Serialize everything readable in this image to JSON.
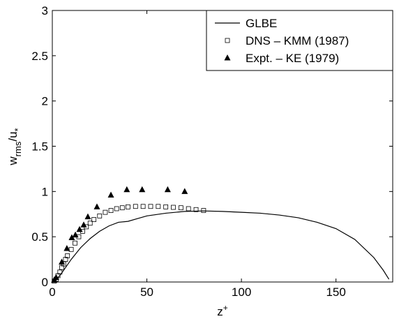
{
  "chart_data": {
    "type": "line",
    "xlabel": [
      "z",
      "+"
    ],
    "ylabel": [
      "w",
      "rms",
      "/u",
      "*"
    ],
    "xlim": [
      0,
      180
    ],
    "ylim": [
      0,
      3
    ],
    "xticks": [
      0,
      50,
      100,
      150
    ],
    "yticks": [
      0,
      0.5,
      1,
      1.5,
      2,
      2.5,
      3
    ],
    "legend": "upper right",
    "series": [
      {
        "name": "GLBE",
        "color": "#000000",
        "style": "line",
        "x": [
          0,
          2,
          5,
          10,
          15,
          20,
          25,
          30,
          35,
          40,
          45,
          50,
          60,
          70,
          80,
          90,
          100,
          110,
          120,
          130,
          140,
          150,
          160,
          170,
          175,
          178
        ],
        "values": [
          0,
          0.02,
          0.1,
          0.25,
          0.38,
          0.48,
          0.56,
          0.62,
          0.66,
          0.67,
          0.7,
          0.73,
          0.76,
          0.78,
          0.785,
          0.78,
          0.77,
          0.76,
          0.74,
          0.71,
          0.66,
          0.59,
          0.47,
          0.27,
          0.13,
          0.03
        ]
      },
      {
        "name": "DNS – KMM (1987)",
        "color": "#000000",
        "style": "square",
        "x": [
          1,
          2,
          3,
          4,
          5,
          6,
          7,
          8,
          10,
          12,
          14,
          16,
          18,
          20,
          22,
          25,
          28,
          31,
          34,
          37,
          40,
          44,
          48,
          52,
          56,
          60,
          64,
          68,
          72,
          76,
          80
        ],
        "values": [
          0.01,
          0.03,
          0.07,
          0.11,
          0.16,
          0.2,
          0.25,
          0.29,
          0.36,
          0.43,
          0.5,
          0.56,
          0.61,
          0.65,
          0.69,
          0.73,
          0.77,
          0.79,
          0.81,
          0.82,
          0.83,
          0.835,
          0.835,
          0.835,
          0.835,
          0.83,
          0.825,
          0.82,
          0.81,
          0.8,
          0.79
        ]
      },
      {
        "name": "Expt. – KE (1979)",
        "color": "#000000",
        "style": "triangle",
        "x": [
          1,
          2,
          5,
          7.7,
          10.3,
          12.2,
          14.4,
          16.6,
          18.8,
          23.6,
          31,
          39.4,
          47.5,
          61,
          70
        ],
        "values": [
          0.02,
          0.05,
          0.22,
          0.37,
          0.49,
          0.52,
          0.58,
          0.63,
          0.72,
          0.83,
          0.96,
          1.02,
          1.02,
          1.02,
          1.0
        ]
      }
    ]
  }
}
